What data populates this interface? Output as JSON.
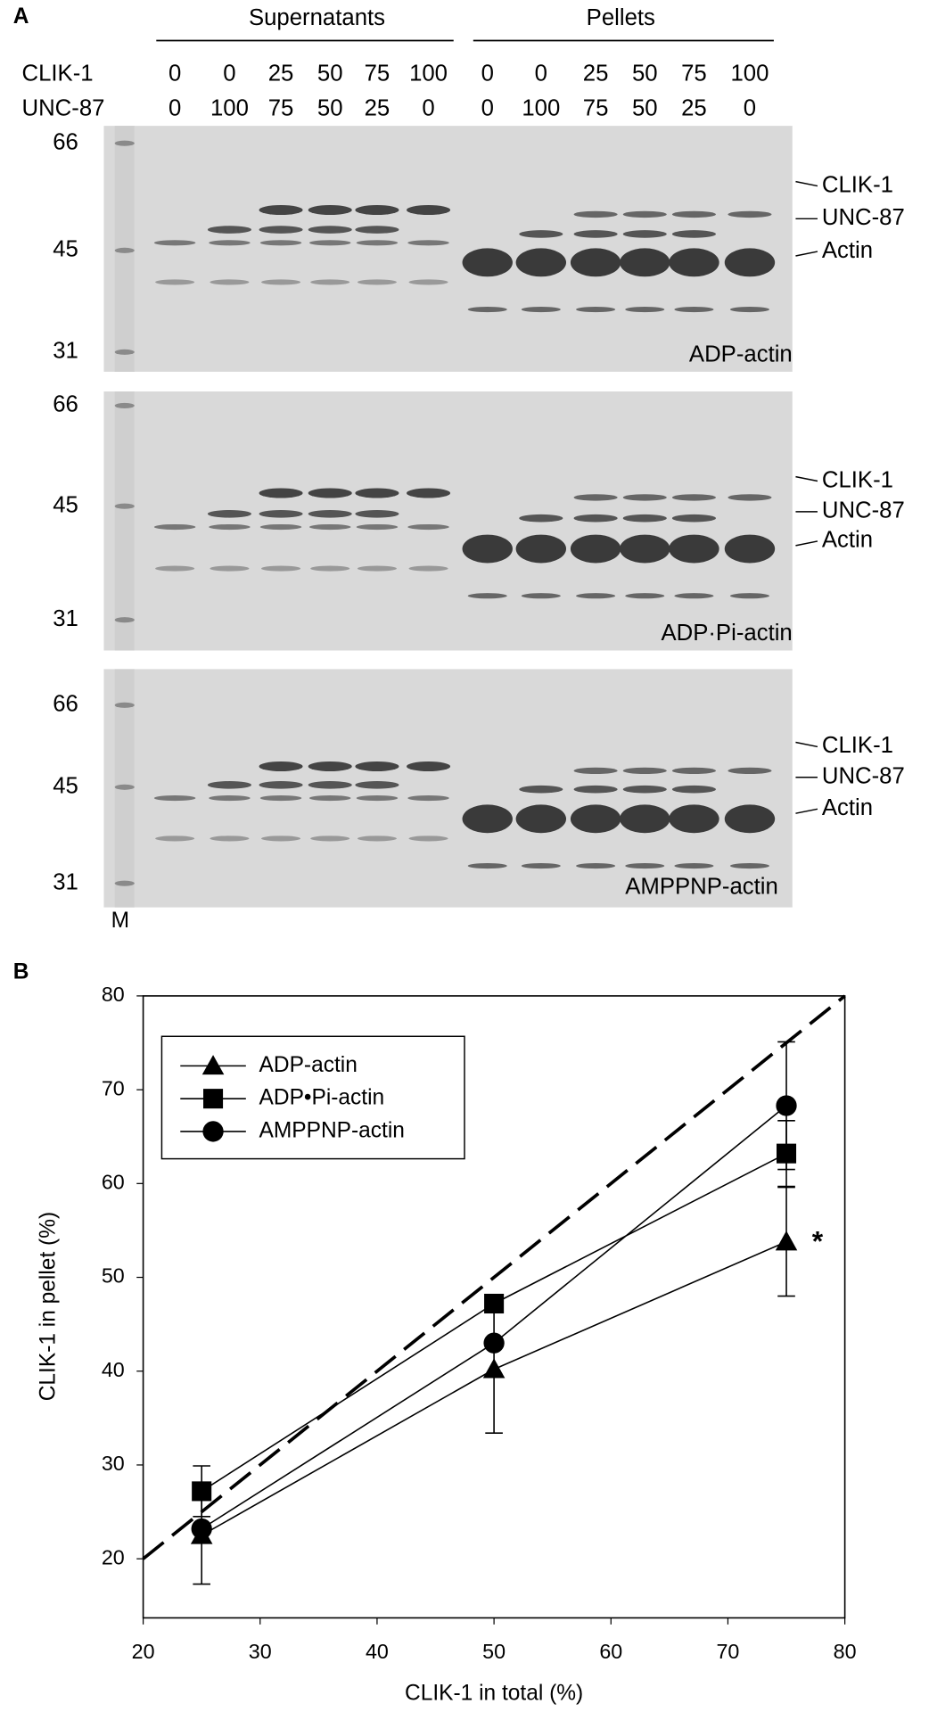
{
  "panel_a": {
    "label": "A",
    "groups": [
      "Supernatants",
      "Pellets"
    ],
    "row_labels": [
      "CLIK-1",
      "UNC-87"
    ],
    "clik1": [
      0,
      0,
      25,
      50,
      75,
      100,
      0,
      0,
      25,
      50,
      75,
      100
    ],
    "unc87": [
      0,
      100,
      75,
      50,
      25,
      0,
      0,
      100,
      75,
      50,
      25,
      0
    ],
    "gels": [
      {
        "markers": [
          "66",
          "45",
          "31"
        ],
        "bands": [
          "CLIK-1",
          "UNC-87",
          "Actin"
        ],
        "name": "ADP-actin"
      },
      {
        "markers": [
          "66",
          "45",
          "31"
        ],
        "bands": [
          "CLIK-1",
          "UNC-87",
          "Actin"
        ],
        "name": "ADP·Pi-actin"
      },
      {
        "markers": [
          "66",
          "45",
          "31"
        ],
        "bands": [
          "CLIK-1",
          "UNC-87",
          "Actin"
        ],
        "name": "AMPPNP-actin"
      }
    ],
    "lane_label": "M"
  },
  "chart_data": {
    "type": "line",
    "label": "B",
    "x_label": "CLIK-1 in total (%)",
    "y_label": "CLIK-1 in pellet (%)",
    "x": [
      25,
      50,
      75
    ],
    "series": [
      {
        "name": "ADP-actin",
        "color": "#000000",
        "marker": "triangle",
        "values": [
          22.5,
          40.2,
          53.8
        ],
        "errors": [
          5.2,
          6.8,
          5.8
        ]
      },
      {
        "name": "ADP•Pi-actin",
        "color": "#000000",
        "marker": "square",
        "values": [
          27.2,
          47.2,
          63.2
        ],
        "errors": [
          2.7,
          null,
          3.5
        ]
      },
      {
        "name": "AMPPNP-actin",
        "color": "#000000",
        "marker": "circle",
        "values": [
          23.2,
          43.0,
          68.3
        ],
        "errors": [
          null,
          null,
          6.8
        ]
      }
    ],
    "reference_line": {
      "x": [
        20,
        80
      ],
      "y": [
        20,
        80
      ]
    },
    "annotations": [
      "*"
    ],
    "xlim": [
      20,
      80
    ],
    "xticks": [
      20,
      30,
      40,
      50,
      60,
      70,
      80
    ],
    "ylim": [
      13.7,
      80
    ],
    "yticks": [
      20,
      30,
      40,
      50,
      60,
      70,
      80
    ],
    "legend": "upper-left"
  }
}
